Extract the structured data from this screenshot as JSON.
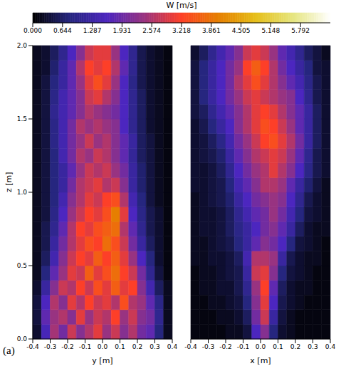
{
  "panel_label": "(a)",
  "chart_data": [
    {
      "type": "heatmap",
      "xlabel": "y [m]",
      "ylabel": "z [m]",
      "xlim": [
        -0.4,
        0.4
      ],
      "ylim": [
        0,
        2
      ],
      "xticks": [
        -0.4,
        -0.3,
        -0.2,
        -0.1,
        {
          "value": 0,
          "label": "0.0"
        },
        0.1,
        0.2,
        0.3,
        0.4
      ],
      "yticks": [
        {
          "value": 0,
          "label": "0.0"
        },
        0.5,
        {
          "value": 1,
          "label": "1.0"
        },
        1.5,
        {
          "value": 2,
          "label": "2.0"
        }
      ],
      "colorbar": {
        "label": "W [m/s]",
        "range": [
          0,
          6.436
        ],
        "ticks": [
          {
            "value": 0,
            "label": "0.000"
          },
          0.644,
          1.287,
          1.931,
          2.574,
          3.218,
          3.861,
          4.505,
          5.148,
          5.792
        ]
      },
      "x_bins": [
        -0.4,
        -0.35,
        -0.3,
        -0.25,
        -0.2,
        -0.15,
        -0.1,
        -0.05,
        0,
        0.05,
        0.1,
        0.15,
        0.2,
        0.25,
        0.3,
        0.35,
        0.4
      ],
      "y_bins": [
        0,
        0.1,
        0.2,
        0.3,
        0.4,
        0.5,
        0.6,
        0.7,
        0.8,
        0.9,
        1.0,
        1.1,
        1.2,
        1.3,
        1.4,
        1.5,
        1.6,
        1.7,
        1.8,
        1.9,
        2.0
      ],
      "cells": [
        [
          0.3,
          1.5,
          2.5,
          2.0,
          2.8,
          2.2,
          2.6,
          3.0,
          2.4,
          2.8,
          2.2,
          2.6,
          2.0,
          1.8,
          0.8,
          0.2
        ],
        [
          0.4,
          1.8,
          2.4,
          2.6,
          2.2,
          3.0,
          2.4,
          2.8,
          2.6,
          3.2,
          2.4,
          2.8,
          2.2,
          2.0,
          1.0,
          0.2
        ],
        [
          0.4,
          1.6,
          2.6,
          2.2,
          3.0,
          2.6,
          3.2,
          2.8,
          3.0,
          2.6,
          3.4,
          2.6,
          2.4,
          1.8,
          0.9,
          0.2
        ],
        [
          0.3,
          1.2,
          2.2,
          2.8,
          2.6,
          3.2,
          2.8,
          3.4,
          3.0,
          3.6,
          3.0,
          3.2,
          2.2,
          1.4,
          0.6,
          0.2
        ],
        [
          0.2,
          0.8,
          1.8,
          2.4,
          3.0,
          2.8,
          3.6,
          3.0,
          3.4,
          3.8,
          3.2,
          2.8,
          2.0,
          1.0,
          0.4,
          0.1
        ],
        [
          0.2,
          0.6,
          1.4,
          2.2,
          2.8,
          3.2,
          3.0,
          3.6,
          3.2,
          3.6,
          3.0,
          2.4,
          1.6,
          0.8,
          0.3,
          0.1
        ],
        [
          0.2,
          0.5,
          1.2,
          2.0,
          2.6,
          3.0,
          3.4,
          3.2,
          3.8,
          3.4,
          2.8,
          2.0,
          1.2,
          0.6,
          0.3,
          0.1
        ],
        [
          0.2,
          0.5,
          1.0,
          1.8,
          2.6,
          3.2,
          3.0,
          3.4,
          3.6,
          3.8,
          2.6,
          1.8,
          1.0,
          0.5,
          0.3,
          0.1
        ],
        [
          0.2,
          0.4,
          0.9,
          1.6,
          2.4,
          2.8,
          3.2,
          3.0,
          3.4,
          4.0,
          3.0,
          1.6,
          0.9,
          0.5,
          0.3,
          0.1
        ],
        [
          0.2,
          0.4,
          0.8,
          1.4,
          2.2,
          2.6,
          3.0,
          2.8,
          3.2,
          3.4,
          2.6,
          1.4,
          0.8,
          0.4,
          0.2,
          0.1
        ],
        [
          0.2,
          0.4,
          0.8,
          1.2,
          2.0,
          2.6,
          2.8,
          3.0,
          2.6,
          2.8,
          2.2,
          1.2,
          0.7,
          0.4,
          0.2,
          0.1
        ],
        [
          0.2,
          0.4,
          0.8,
          1.2,
          1.8,
          2.4,
          2.8,
          2.6,
          2.8,
          2.4,
          2.0,
          1.2,
          0.7,
          0.4,
          0.2,
          0.1
        ],
        [
          0.2,
          0.4,
          0.8,
          1.4,
          2.0,
          2.6,
          2.4,
          2.8,
          2.6,
          2.2,
          1.8,
          1.1,
          0.6,
          0.4,
          0.2,
          0.1
        ],
        [
          0.2,
          0.4,
          0.9,
          1.4,
          2.0,
          2.4,
          2.8,
          2.4,
          2.6,
          2.2,
          1.8,
          1.2,
          0.6,
          0.4,
          0.2,
          0.1
        ],
        [
          0.2,
          0.4,
          0.9,
          1.4,
          2.0,
          2.6,
          2.4,
          2.6,
          2.4,
          2.2,
          1.6,
          1.0,
          0.6,
          0.3,
          0.2,
          0.1
        ],
        [
          0.2,
          0.4,
          1.0,
          1.4,
          1.8,
          2.2,
          2.6,
          2.4,
          2.2,
          2.0,
          1.6,
          1.0,
          0.6,
          0.3,
          0.2,
          0.1
        ],
        [
          0.2,
          0.4,
          0.9,
          1.4,
          1.8,
          2.2,
          2.8,
          3.0,
          2.6,
          2.2,
          1.6,
          1.0,
          0.6,
          0.3,
          0.2,
          0.1
        ],
        [
          0.2,
          0.4,
          0.8,
          1.2,
          1.8,
          2.4,
          3.0,
          3.4,
          3.0,
          2.4,
          1.6,
          0.9,
          0.5,
          0.3,
          0.2,
          0.1
        ],
        [
          0.2,
          0.3,
          0.7,
          1.2,
          1.8,
          2.6,
          3.2,
          3.0,
          3.2,
          2.6,
          1.8,
          1.0,
          0.5,
          0.3,
          0.2,
          0.1
        ],
        [
          0.2,
          0.3,
          0.6,
          1.0,
          1.6,
          2.2,
          2.8,
          3.0,
          3.0,
          2.4,
          1.6,
          1.0,
          0.5,
          0.3,
          0.2,
          0.1
        ]
      ]
    },
    {
      "type": "heatmap",
      "xlabel": "x [m]",
      "tick_labels": "x",
      "xlim": [
        -0.4,
        0.4
      ],
      "ylim": [
        0,
        2
      ],
      "xticks": [
        -0.4,
        -0.3,
        -0.2,
        -0.1,
        {
          "value": 0,
          "label": "0.0"
        },
        0.1,
        0.2,
        0.3,
        0.4
      ],
      "x_bins": [
        -0.4,
        -0.35,
        -0.3,
        -0.25,
        -0.2,
        -0.15,
        -0.1,
        -0.05,
        0,
        0.05,
        0.1,
        0.15,
        0.2,
        0.25,
        0.3,
        0.35,
        0.4
      ],
      "y_bins": [
        0,
        0.1,
        0.2,
        0.3,
        0.4,
        0.5,
        0.6,
        0.7,
        0.8,
        0.9,
        1.0,
        1.1,
        1.2,
        1.3,
        1.4,
        1.5,
        1.6,
        1.7,
        1.8,
        1.9,
        2.0
      ],
      "cells": [
        [
          0.1,
          0.1,
          0.1,
          0.1,
          0.2,
          0.2,
          0.4,
          1.6,
          2.2,
          0.8,
          0.3,
          0.2,
          0.1,
          0.1,
          0.1,
          0.1
        ],
        [
          0.1,
          0.1,
          0.1,
          0.2,
          0.2,
          0.3,
          0.6,
          2.0,
          2.8,
          1.2,
          0.4,
          0.2,
          0.1,
          0.1,
          0.1,
          0.1
        ],
        [
          0.1,
          0.1,
          0.2,
          0.2,
          0.3,
          0.4,
          0.8,
          2.2,
          3.0,
          1.6,
          0.5,
          0.3,
          0.2,
          0.1,
          0.1,
          0.1
        ],
        [
          0.1,
          0.2,
          0.2,
          0.3,
          0.3,
          0.5,
          1.0,
          2.4,
          3.2,
          1.8,
          0.6,
          0.3,
          0.2,
          0.2,
          0.1,
          0.1
        ],
        [
          0.1,
          0.2,
          0.2,
          0.3,
          0.4,
          0.5,
          1.2,
          2.8,
          3.0,
          2.2,
          0.8,
          0.4,
          0.3,
          0.2,
          0.1,
          0.1
        ],
        [
          0.2,
          0.2,
          0.3,
          0.3,
          0.4,
          0.6,
          1.4,
          2.6,
          2.6,
          2.4,
          1.2,
          0.5,
          0.3,
          0.2,
          0.2,
          0.1
        ],
        [
          0.2,
          0.2,
          0.3,
          0.4,
          0.5,
          0.8,
          1.2,
          1.8,
          2.2,
          2.0,
          1.6,
          0.8,
          0.4,
          0.3,
          0.2,
          0.1
        ],
        [
          0.2,
          0.3,
          0.3,
          0.4,
          0.6,
          0.9,
          1.2,
          1.6,
          2.0,
          2.2,
          1.8,
          1.2,
          0.6,
          0.3,
          0.2,
          0.2
        ],
        [
          0.2,
          0.3,
          0.3,
          0.4,
          0.6,
          1.0,
          1.4,
          1.8,
          2.0,
          2.4,
          2.0,
          1.4,
          0.8,
          0.4,
          0.3,
          0.2
        ],
        [
          0.2,
          0.3,
          0.4,
          0.5,
          0.7,
          1.2,
          1.6,
          2.0,
          2.2,
          2.4,
          2.2,
          1.6,
          1.0,
          0.5,
          0.3,
          0.2
        ],
        [
          0.3,
          0.3,
          0.4,
          0.5,
          0.8,
          1.4,
          1.8,
          2.2,
          2.6,
          2.6,
          2.4,
          1.8,
          1.2,
          0.7,
          0.4,
          0.2
        ],
        [
          0.3,
          0.3,
          0.4,
          0.6,
          1.0,
          1.6,
          2.0,
          2.4,
          2.6,
          3.0,
          2.6,
          2.2,
          1.6,
          0.9,
          0.5,
          0.3
        ],
        [
          0.3,
          0.4,
          0.5,
          0.7,
          1.2,
          1.8,
          2.2,
          2.6,
          2.8,
          3.0,
          2.8,
          2.4,
          1.8,
          1.0,
          0.5,
          0.3
        ],
        [
          0.3,
          0.4,
          0.6,
          0.9,
          1.4,
          2.0,
          2.4,
          2.8,
          3.2,
          3.4,
          3.0,
          2.6,
          2.0,
          1.2,
          0.6,
          0.3
        ],
        [
          0.3,
          0.5,
          0.8,
          1.2,
          1.6,
          2.2,
          2.6,
          3.0,
          3.4,
          3.2,
          2.8,
          2.4,
          1.8,
          1.2,
          0.6,
          0.3
        ],
        [
          0.4,
          0.6,
          1.0,
          1.4,
          1.8,
          2.2,
          2.6,
          3.0,
          3.2,
          3.0,
          2.6,
          2.2,
          1.8,
          1.2,
          0.6,
          0.3
        ],
        [
          0.4,
          0.8,
          1.2,
          1.6,
          2.0,
          2.4,
          2.8,
          3.0,
          2.8,
          2.6,
          2.4,
          2.2,
          1.6,
          1.0,
          0.5,
          0.3
        ],
        [
          0.4,
          0.8,
          1.2,
          1.6,
          2.0,
          2.6,
          3.0,
          3.4,
          3.0,
          2.6,
          2.2,
          1.8,
          1.4,
          0.9,
          0.5,
          0.3
        ],
        [
          0.4,
          0.8,
          1.2,
          1.6,
          2.0,
          2.4,
          3.2,
          3.6,
          3.2,
          2.6,
          2.0,
          1.6,
          1.2,
          0.8,
          0.4,
          0.3
        ],
        [
          0.3,
          0.6,
          1.0,
          1.4,
          1.8,
          2.2,
          2.8,
          3.0,
          2.8,
          2.4,
          1.8,
          1.4,
          1.0,
          0.6,
          0.4,
          0.2
        ]
      ]
    }
  ]
}
